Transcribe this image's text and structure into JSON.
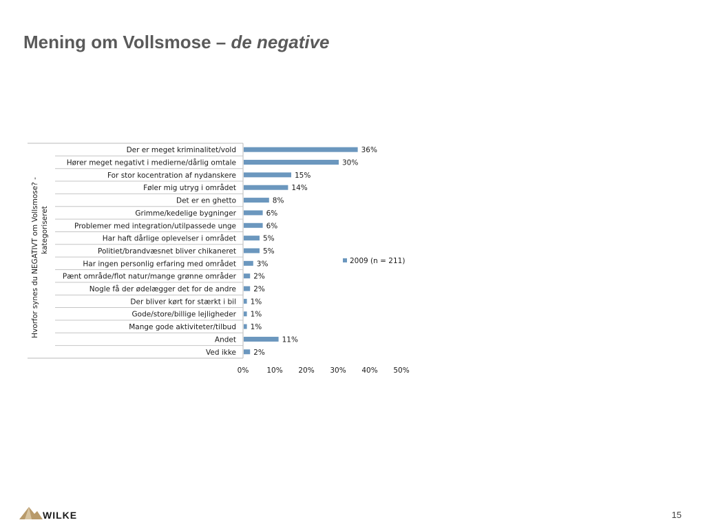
{
  "slide": {
    "title_main": "Mening om Vollsmose – ",
    "title_italic": "de negative",
    "page_number": "15",
    "logo_text": "WILKE"
  },
  "chart_data": {
    "type": "bar",
    "orientation": "horizontal",
    "title": "",
    "ylabel": "Hvorfor synes du NEGATIVT om Vollsmose? - kategoriseret",
    "xlabel": "",
    "xlim": [
      0,
      50
    ],
    "x_ticks": [
      "0%",
      "10%",
      "20%",
      "30%",
      "40%",
      "50%"
    ],
    "grid": false,
    "legend_position": "right",
    "bar_color": "#6b97be",
    "categories": [
      "Der er meget kriminalitet/vold",
      "Hører meget negativt i medierne/dårlig omtale",
      "For stor kocentration af nydanskere",
      "Føler mig utryg i området",
      "Det er en ghetto",
      "Grimme/kedelige bygninger",
      "Problemer med integration/utilpassede unge",
      "Har haft dårlige oplevelser i området",
      "Politiet/brandvæsnet bliver chikaneret",
      "Har ingen personlig erfaring med området",
      "Pænt område/flot natur/mange grønne områder",
      "Nogle få der ødelægger det for de andre",
      "Der bliver kørt for stærkt i bil",
      "Gode/store/billige lejligheder",
      "Mange gode aktiviteter/tilbud",
      "Andet",
      "Ved ikke"
    ],
    "series": [
      {
        "name": "2009 (n = 211)",
        "values": [
          36,
          30,
          15,
          14,
          8,
          6,
          6,
          5,
          5,
          3,
          2,
          2,
          1,
          1,
          1,
          11,
          2
        ],
        "labels": [
          "36%",
          "30%",
          "15%",
          "14%",
          "8%",
          "6%",
          "6%",
          "5%",
          "5%",
          "3%",
          "2%",
          "2%",
          "1%",
          "1%",
          "1%",
          "11%",
          "2%"
        ]
      }
    ]
  }
}
